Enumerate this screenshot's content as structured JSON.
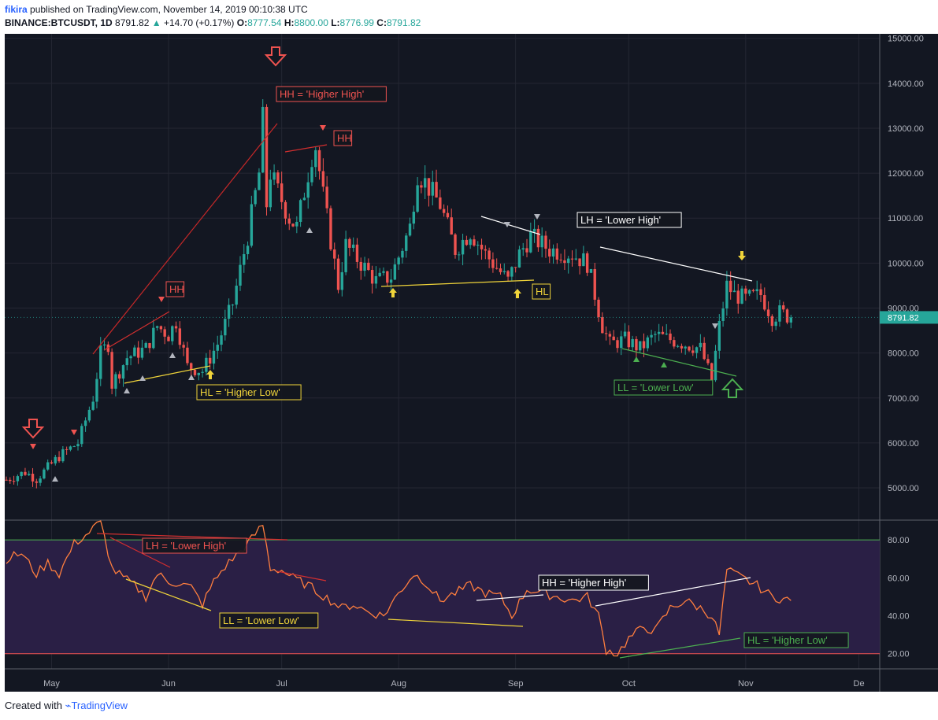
{
  "header": {
    "user": "fikira",
    "published_text": "published on TradingView.com, November 14, 2019 00:10:38 UTC",
    "symbol": "BINANCE:BTCUSDT, 1D",
    "price": "8791.82",
    "change_arrow": "▲",
    "change": "+14.70 (+0.17%)",
    "o_label": "O:",
    "o_value": "8777.54",
    "h_label": "H:",
    "h_value": "8800.00",
    "l_label": "L:",
    "l_value": "8776.99",
    "c_label": "C:",
    "c_value": "8791.82"
  },
  "footer": {
    "created_with": "Created with",
    "brand": "TradingView"
  },
  "colors": {
    "background": "#131722",
    "up": "#26a69a",
    "down": "#ef5350",
    "rsi_line": "#ff7e3e",
    "rsi_band": "#2a1f45",
    "last_price": "#26a69a"
  },
  "chart_data": [
    {
      "type": "candlestick",
      "title": "BINANCE:BTCUSDT, 1D",
      "y_axis_ticks": [
        "5000.00",
        "6000.00",
        "7000.00",
        "8000.00",
        "9000.00",
        "10000.00",
        "11000.00",
        "12000.00",
        "13000.00",
        "14000.00",
        "15000.00"
      ],
      "ylim": [
        4300,
        15100
      ],
      "x_axis_ticks": [
        "May",
        "Jun",
        "Jul",
        "Aug",
        "Sep",
        "Oct",
        "Nov",
        "De"
      ],
      "last_price_label": "8791.82",
      "last_price": 8791.82,
      "close_path": [
        [
          "2019-04-19",
          5180
        ],
        [
          "2019-04-24",
          5350
        ],
        [
          "2019-04-27",
          5200
        ],
        [
          "2019-05-03",
          5700
        ],
        [
          "2019-05-08",
          6000
        ],
        [
          "2019-05-12",
          7000
        ],
        [
          "2019-05-14",
          8000
        ],
        [
          "2019-05-16",
          8200
        ],
        [
          "2019-05-17",
          7300
        ],
        [
          "2019-05-21",
          7900
        ],
        [
          "2019-05-26",
          8100
        ],
        [
          "2019-05-29",
          8600
        ],
        [
          "2019-06-01",
          8400
        ],
        [
          "2019-06-03",
          8700
        ],
        [
          "2019-06-06",
          7700
        ],
        [
          "2019-06-10",
          7600
        ],
        [
          "2019-06-14",
          8200
        ],
        [
          "2019-06-18",
          9100
        ],
        [
          "2019-06-22",
          10600
        ],
        [
          "2019-06-25",
          12000
        ],
        [
          "2019-06-26",
          13200
        ],
        [
          "2019-06-27",
          11300
        ],
        [
          "2019-06-28",
          12000
        ],
        [
          "2019-07-03",
          11000
        ],
        [
          "2019-07-05",
          10800
        ],
        [
          "2019-07-09",
          12400
        ],
        [
          "2019-07-10",
          12600
        ],
        [
          "2019-07-12",
          11500
        ],
        [
          "2019-07-16",
          9500
        ],
        [
          "2019-07-18",
          10400
        ],
        [
          "2019-07-22",
          10000
        ],
        [
          "2019-07-26",
          9600
        ],
        [
          "2019-07-30",
          9700
        ],
        [
          "2019-08-04",
          10800
        ],
        [
          "2019-08-06",
          12000
        ],
        [
          "2019-08-08",
          11800
        ],
        [
          "2019-08-12",
          11300
        ],
        [
          "2019-08-16",
          10300
        ],
        [
          "2019-08-20",
          10700
        ],
        [
          "2019-08-24",
          10200
        ],
        [
          "2019-08-28",
          9800
        ],
        [
          "2019-08-30",
          9600
        ],
        [
          "2019-09-02",
          10200
        ],
        [
          "2019-09-05",
          10600
        ],
        [
          "2019-09-10",
          10300
        ],
        [
          "2019-09-16",
          10200
        ],
        [
          "2019-09-20",
          10000
        ],
        [
          "2019-09-24",
          8600
        ],
        [
          "2019-09-26",
          8200
        ],
        [
          "2019-09-30",
          8300
        ],
        [
          "2019-10-04",
          8100
        ],
        [
          "2019-10-08",
          8400
        ],
        [
          "2019-10-12",
          8300
        ],
        [
          "2019-10-16",
          8200
        ],
        [
          "2019-10-20",
          8100
        ],
        [
          "2019-10-23",
          7400
        ],
        [
          "2019-10-25",
          8600
        ],
        [
          "2019-10-27",
          9500
        ],
        [
          "2019-10-29",
          9300
        ],
        [
          "2019-11-01",
          9200
        ],
        [
          "2019-11-05",
          9300
        ],
        [
          "2019-11-08",
          8800
        ],
        [
          "2019-11-10",
          8900
        ],
        [
          "2019-11-13",
          8791.82
        ]
      ],
      "annotations": [
        {
          "text": "HH = 'Higher High'",
          "color": "#ef5350"
        },
        {
          "text": "HH",
          "color": "#ef5350"
        },
        {
          "text": "HH",
          "color": "#ef5350"
        },
        {
          "text": "HL = 'Higher Low'",
          "color": "#f0d43a"
        },
        {
          "text": "HL",
          "color": "#f0d43a"
        },
        {
          "text": "LH = 'Lower High'",
          "color": "#ffffff"
        },
        {
          "text": "LL = 'Lower Low'",
          "color": "#4caf50"
        }
      ]
    },
    {
      "type": "line",
      "y_axis_ticks": [
        "20.00",
        "40.00",
        "60.00",
        "80.00"
      ],
      "ylim": [
        12,
        90
      ],
      "band_lines": [
        20,
        80
      ],
      "x_axis_ticks": [
        "May",
        "Jun",
        "Jul",
        "Aug",
        "Sep",
        "Oct",
        "Nov",
        "De"
      ],
      "x": [
        "2019-04-19",
        "2019-04-23",
        "2019-04-27",
        "2019-04-30",
        "2019-05-03",
        "2019-05-07",
        "2019-05-11",
        "2019-05-14",
        "2019-05-17",
        "2019-05-20",
        "2019-05-23",
        "2019-05-26",
        "2019-05-29",
        "2019-06-01",
        "2019-06-04",
        "2019-06-07",
        "2019-06-10",
        "2019-06-13",
        "2019-06-16",
        "2019-06-19",
        "2019-06-22",
        "2019-06-26",
        "2019-06-28",
        "2019-07-01",
        "2019-07-04",
        "2019-07-08",
        "2019-07-11",
        "2019-07-14",
        "2019-07-17",
        "2019-07-20",
        "2019-07-24",
        "2019-07-28",
        "2019-08-01",
        "2019-08-05",
        "2019-08-08",
        "2019-08-12",
        "2019-08-16",
        "2019-08-20",
        "2019-08-24",
        "2019-08-28",
        "2019-08-31",
        "2019-09-04",
        "2019-09-08",
        "2019-09-12",
        "2019-09-16",
        "2019-09-20",
        "2019-09-23",
        "2019-09-25",
        "2019-09-28",
        "2019-10-01",
        "2019-10-05",
        "2019-10-08",
        "2019-10-12",
        "2019-10-16",
        "2019-10-20",
        "2019-10-23",
        "2019-10-25",
        "2019-10-27",
        "2019-10-31",
        "2019-11-04",
        "2019-11-08",
        "2019-11-13"
      ],
      "values": [
        70,
        73,
        62,
        68,
        62,
        78,
        84,
        90,
        65,
        60,
        56,
        50,
        62,
        58,
        57,
        55,
        46,
        58,
        66,
        72,
        78,
        88,
        65,
        64,
        60,
        56,
        52,
        48,
        44,
        46,
        42,
        40,
        52,
        62,
        58,
        48,
        52,
        56,
        52,
        50,
        40,
        54,
        52,
        50,
        48,
        50,
        40,
        22,
        20,
        28,
        34,
        32,
        44,
        48,
        44,
        40,
        30,
        64,
        60,
        56,
        50,
        48
      ],
      "annotations": [
        {
          "text": "LH = 'Lower High'",
          "color": "#ef5350"
        },
        {
          "text": "LL = 'Lower Low'",
          "color": "#f0d43a"
        },
        {
          "text": "HH = 'Higher High'",
          "color": "#ffffff"
        },
        {
          "text": "HL = 'Higher Low'",
          "color": "#4caf50"
        }
      ]
    }
  ]
}
